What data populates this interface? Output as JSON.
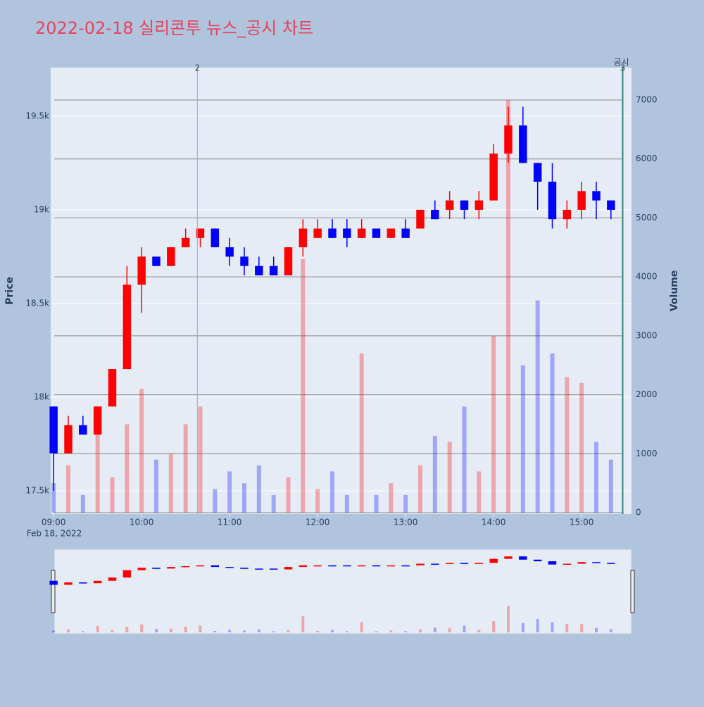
{
  "chart_data": {
    "type": "candlestick",
    "title": "2022-02-18 실리콘투 뉴스_공시 차트",
    "y_label": "Price",
    "y2_label": "Volume",
    "x_date_label": "Feb 18, 2022",
    "x": [
      "09:00",
      "09:10",
      "09:20",
      "09:30",
      "09:40",
      "09:50",
      "10:00",
      "10:10",
      "10:20",
      "10:30",
      "10:40",
      "10:50",
      "11:00",
      "11:10",
      "11:20",
      "11:30",
      "11:40",
      "11:50",
      "12:00",
      "12:10",
      "12:20",
      "12:30",
      "12:40",
      "12:50",
      "13:00",
      "13:10",
      "13:20",
      "13:30",
      "13:40",
      "13:50",
      "14:00",
      "14:10",
      "14:20",
      "14:30",
      "14:40",
      "14:50",
      "15:00",
      "15:10",
      "15:20"
    ],
    "open": [
      17950,
      17700,
      17850,
      17800,
      17950,
      18150,
      18600,
      18750,
      18700,
      18800,
      18850,
      18900,
      18800,
      18750,
      18700,
      18700,
      18650,
      18800,
      18850,
      18900,
      18900,
      18850,
      18900,
      18850,
      18900,
      18900,
      19000,
      19000,
      19050,
      19000,
      19050,
      19300,
      19450,
      19250,
      19150,
      18950,
      19000,
      19100,
      19050
    ],
    "high": [
      17950,
      17900,
      17900,
      17950,
      18150,
      18700,
      18800,
      18750,
      18800,
      18900,
      18900,
      18900,
      18850,
      18800,
      18750,
      18750,
      18800,
      18950,
      18950,
      18950,
      18950,
      18950,
      18900,
      18900,
      18950,
      19000,
      19050,
      19100,
      19050,
      19100,
      19350,
      19550,
      19550,
      19250,
      19250,
      19050,
      19150,
      19150,
      19050
    ],
    "low": [
      17500,
      17700,
      17800,
      17800,
      17950,
      18150,
      18450,
      18700,
      18700,
      18800,
      18800,
      18800,
      18700,
      18650,
      18650,
      18650,
      18650,
      18750,
      18850,
      18850,
      18800,
      18850,
      18850,
      18850,
      18850,
      18900,
      18950,
      18950,
      18950,
      18950,
      19050,
      19250,
      19250,
      19000,
      18900,
      18900,
      18950,
      18950,
      18950
    ],
    "close": [
      17700,
      17850,
      17800,
      17950,
      18150,
      18600,
      18750,
      18700,
      18800,
      18850,
      18900,
      18800,
      18750,
      18700,
      18650,
      18650,
      18800,
      18900,
      18900,
      18850,
      18850,
      18900,
      18850,
      18900,
      18850,
      19000,
      18950,
      19050,
      19000,
      19050,
      19300,
      19450,
      19250,
      19150,
      18950,
      19000,
      19100,
      19050,
      19000
    ],
    "volume": [
      500,
      800,
      300,
      1700,
      600,
      1500,
      2100,
      900,
      1000,
      1500,
      1800,
      400,
      700,
      500,
      800,
      300,
      600,
      4300,
      400,
      700,
      300,
      2700,
      300,
      500,
      300,
      800,
      1300,
      1200,
      1800,
      700,
      3000,
      7000,
      2500,
      3600,
      2700,
      2300,
      2200,
      1200,
      900
    ],
    "up_color": "#ff0000",
    "down_color": "#0000ff",
    "xlim": [
      "08:58",
      "15:34"
    ],
    "xticks": [
      "09:00",
      "10:00",
      "11:00",
      "12:00",
      "13:00",
      "14:00",
      "15:00"
    ],
    "ylim": [
      17376,
      19759
    ],
    "yticks": [
      {
        "value": 17500,
        "label": "17.5k"
      },
      {
        "value": 18000,
        "label": "18k"
      },
      {
        "value": 18500,
        "label": "18.5k"
      },
      {
        "value": 19000,
        "label": "19k"
      },
      {
        "value": 19500,
        "label": "19.5k"
      }
    ],
    "y2lim": [
      -24,
      7550
    ],
    "y2ticks": [
      0,
      1000,
      2000,
      3000,
      4000,
      5000,
      6000,
      7000
    ],
    "annotations": [
      {
        "x": "10:38",
        "label": "2"
      },
      {
        "x": "15:28",
        "label": "3",
        "category": "공시"
      }
    ],
    "grid": true
  }
}
